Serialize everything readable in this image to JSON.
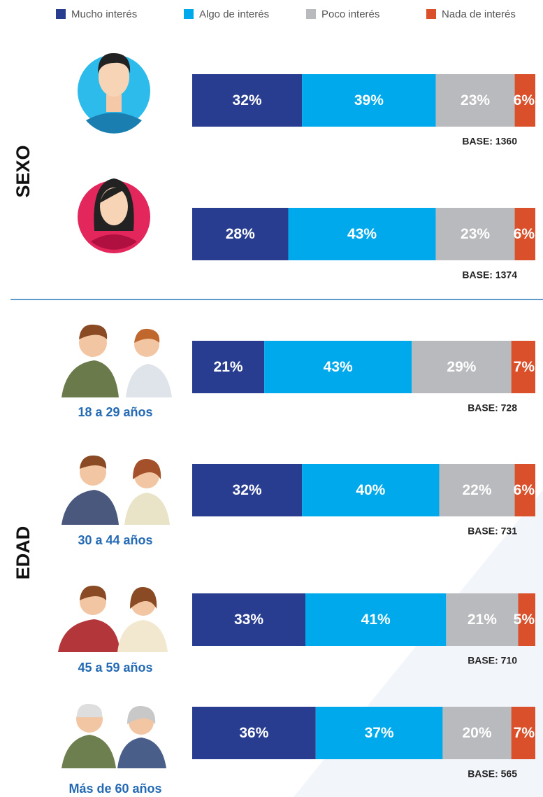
{
  "chart_data": {
    "type": "bar",
    "orientation": "horizontal",
    "stacked": true,
    "categories": [
      null,
      null,
      "18 a 29 años",
      "30 a 44 años",
      "45 a 59 años",
      "Más de 60 años"
    ],
    "group_labels": [
      "SEXO",
      "EDAD"
    ],
    "bases": [
      "BASE: 1360",
      "BASE: 1374",
      "BASE: 728",
      "BASE: 731",
      "BASE: 710",
      "BASE: 565"
    ],
    "xlim": [
      0,
      100
    ],
    "legend": "top",
    "series": [
      {
        "name": "Mucho interés",
        "color": "#283d8f",
        "values": [
          32,
          28,
          21,
          32,
          33,
          36
        ],
        "value_labels": [
          "32%",
          "28%",
          "21%",
          "32%",
          "33%",
          "36%"
        ]
      },
      {
        "name": "Algo de interés",
        "color": "#00a9ec",
        "values": [
          39,
          43,
          43,
          40,
          41,
          37
        ],
        "value_labels": [
          "39%",
          "43%",
          "43%",
          "40%",
          "41%",
          "37%"
        ]
      },
      {
        "name": "Poco interés",
        "color": "#b9babd",
        "values": [
          23,
          23,
          29,
          22,
          21,
          20
        ],
        "value_labels": [
          "23%",
          "23%",
          "29%",
          "22%",
          "21%",
          "20%"
        ]
      },
      {
        "name": "Nada de interés",
        "color": "#d9502a",
        "values": [
          6,
          6,
          7,
          6,
          5,
          7
        ],
        "value_labels": [
          "6%",
          "6%",
          "7%",
          "6%",
          "5%",
          "7%"
        ]
      }
    ]
  }
}
